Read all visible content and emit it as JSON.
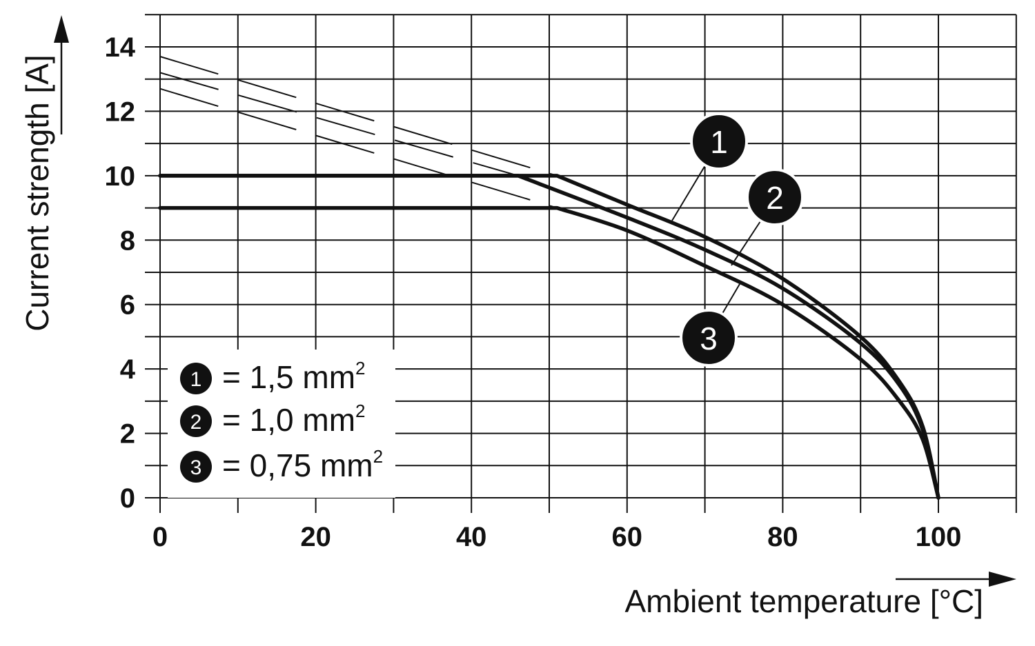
{
  "chart_data": {
    "type": "line",
    "title": "",
    "xlabel": "Ambient temperature [°C]",
    "ylabel": "Current strength [A]",
    "xlim": [
      0,
      110
    ],
    "ylim": [
      0,
      15
    ],
    "x_ticks": [
      "0",
      "20",
      "40",
      "60",
      "80",
      "100"
    ],
    "y_ticks": [
      "0",
      "2",
      "4",
      "6",
      "8",
      "10",
      "12",
      "14"
    ],
    "grid": true,
    "series": [
      {
        "marker": "1",
        "legend_marker": "1",
        "legend_value": "= 1,5 mm",
        "x": [
          0,
          51,
          60,
          70,
          80,
          90,
          95,
          98,
          100
        ],
        "y": [
          10.0,
          10.0,
          9.1,
          8.1,
          6.8,
          5.0,
          3.6,
          2.2,
          0
        ]
      },
      {
        "marker": "2",
        "legend_marker": "2",
        "legend_value": "= 1,0 mm",
        "x": [
          0,
          46,
          60,
          70,
          80,
          90,
          95,
          98,
          100
        ],
        "y": [
          10.0,
          10.0,
          8.7,
          7.7,
          6.5,
          4.8,
          3.5,
          2.1,
          0
        ]
      },
      {
        "marker": "3",
        "legend_marker": "3",
        "legend_value": "= 0,75 mm",
        "x": [
          0,
          51,
          60,
          70,
          80,
          90,
          95,
          98,
          100
        ],
        "y": [
          9.0,
          9.0,
          8.3,
          7.2,
          6.0,
          4.3,
          3.0,
          1.8,
          0
        ]
      }
    ],
    "dashed_extensions": [
      {
        "x": [
          0,
          51
        ],
        "y": [
          13.7,
          10.0
        ]
      },
      {
        "x": [
          0,
          46
        ],
        "y": [
          13.2,
          10.0
        ]
      },
      {
        "x": [
          0,
          51
        ],
        "y": [
          12.7,
          9.0
        ]
      }
    ],
    "legend_placement": "bottom-left",
    "legend_superscript": "2",
    "colors": {
      "line": "#111111",
      "grid": "#111111",
      "marker": "#111111"
    }
  }
}
